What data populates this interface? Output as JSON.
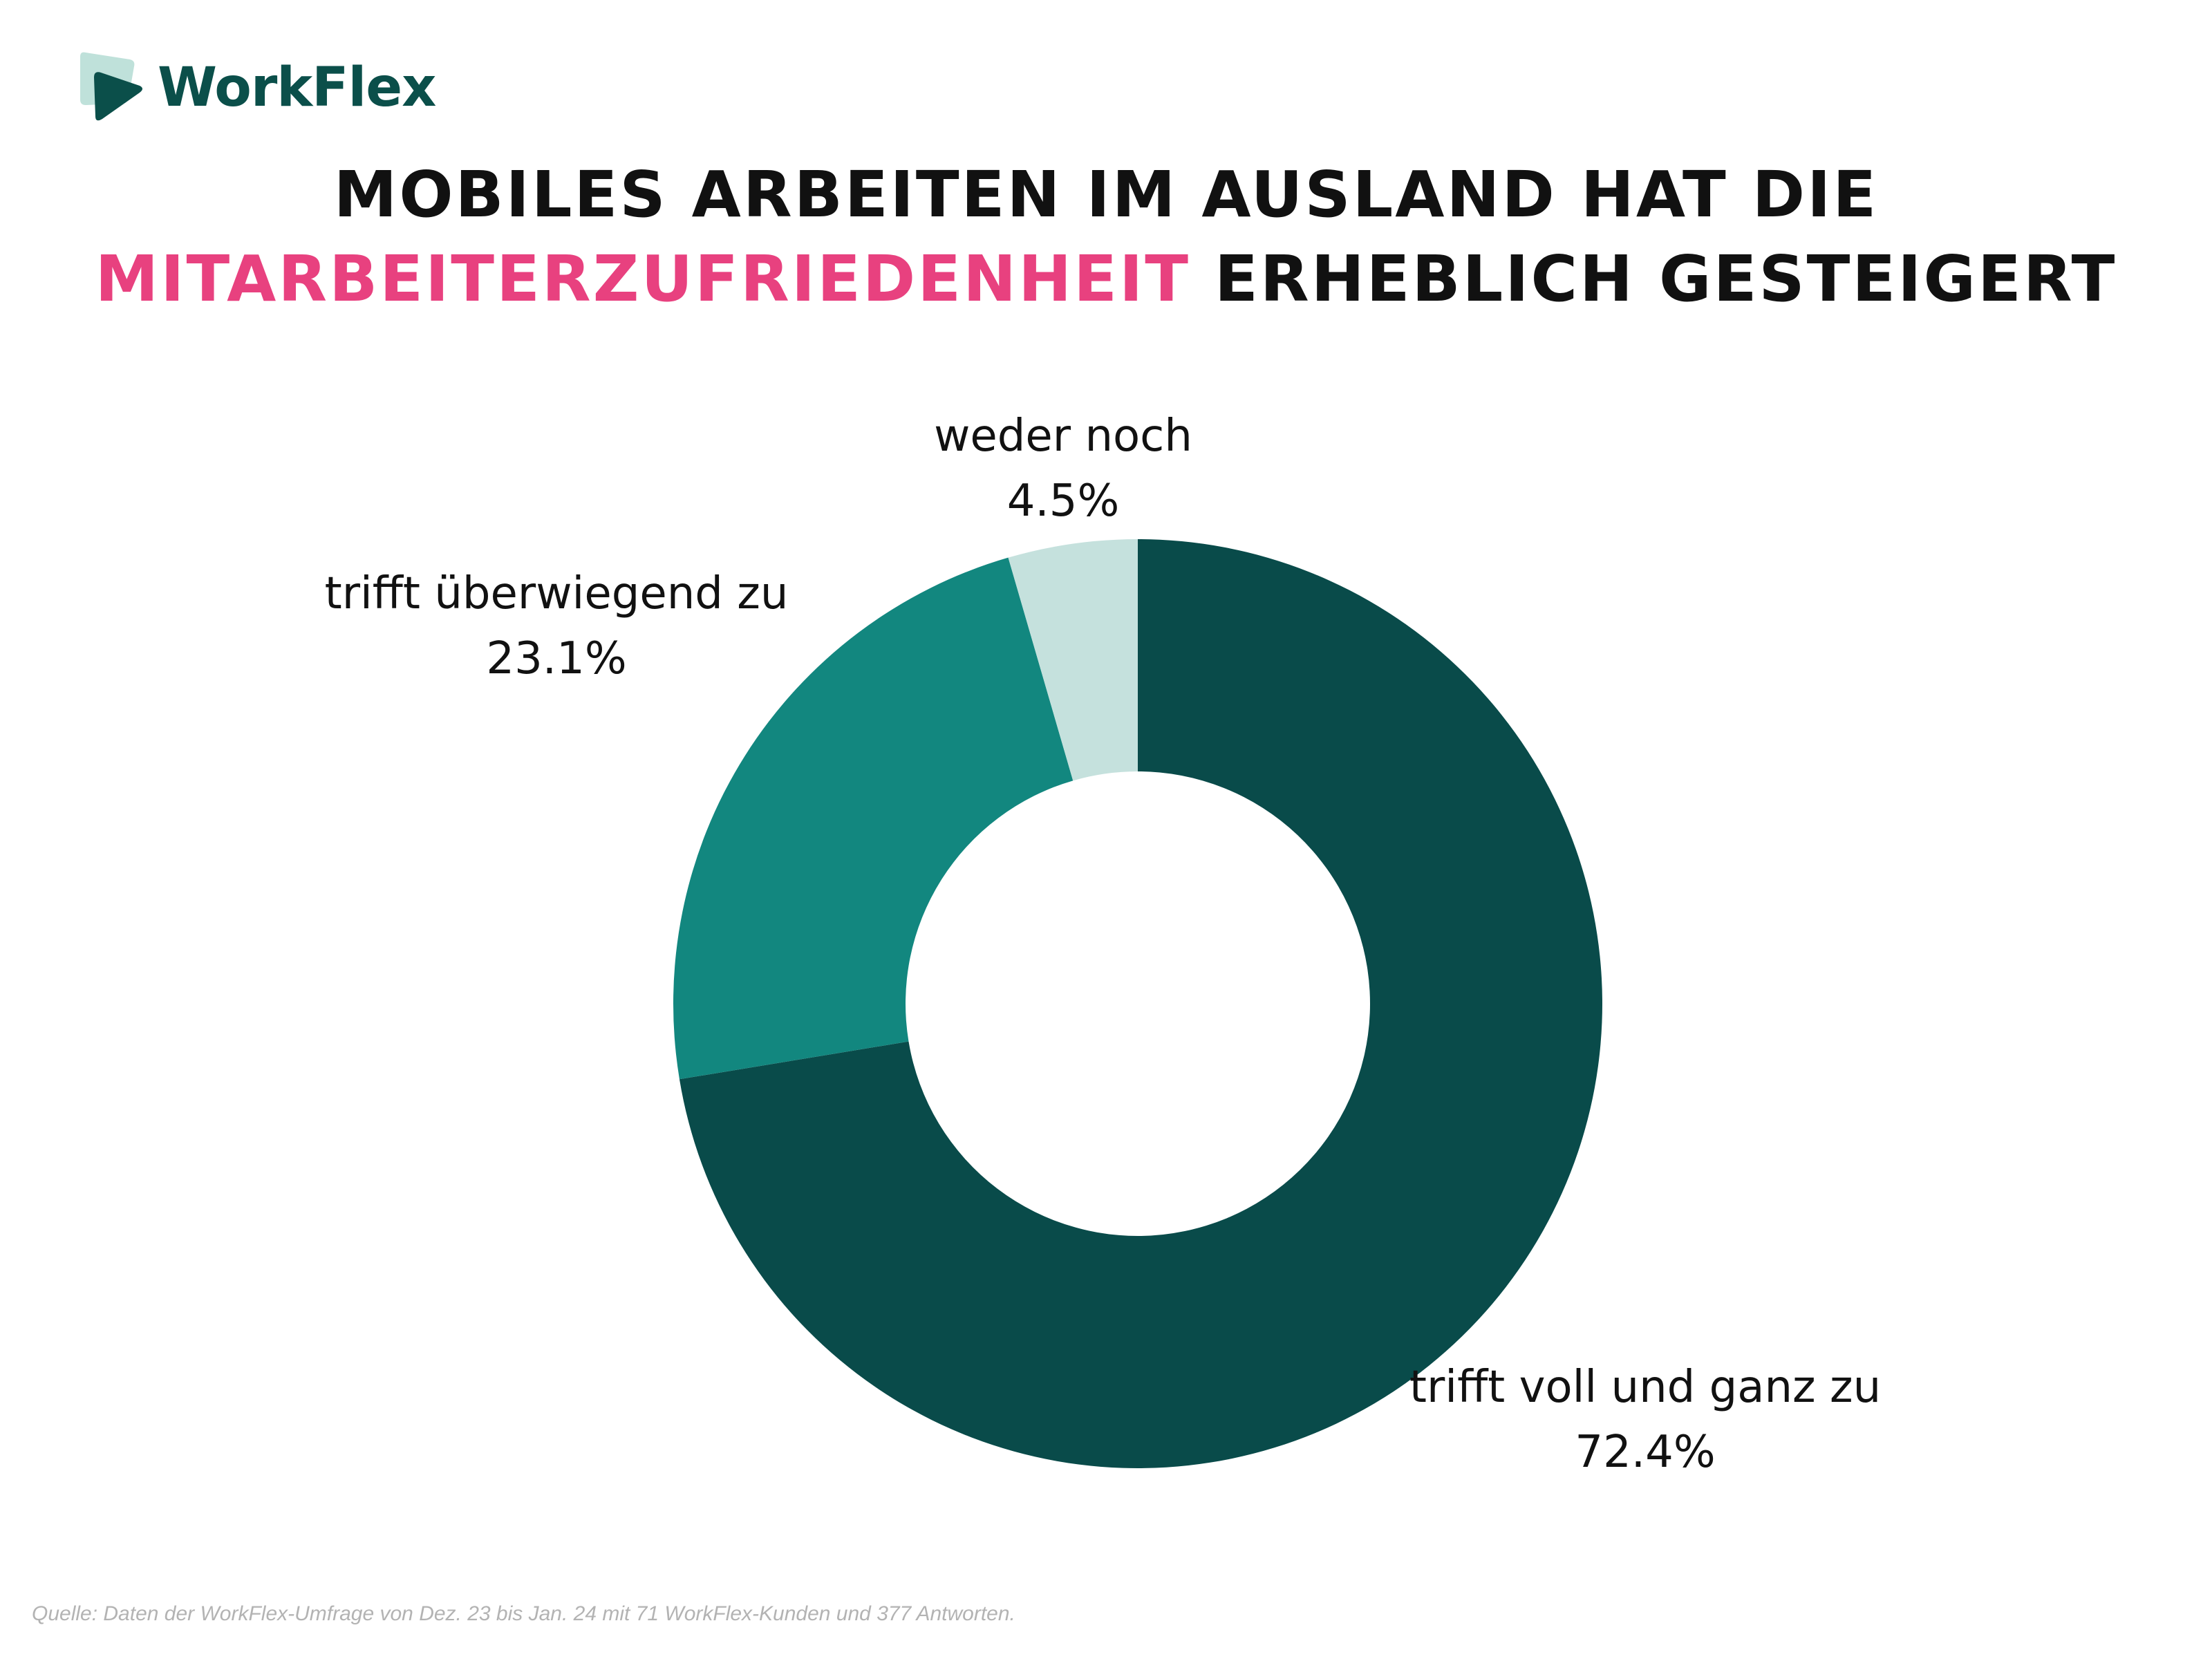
{
  "brand": {
    "name": "WorkFlex",
    "colors": {
      "logo_dark": "#0b4f4a",
      "logo_light": "#bfe1da"
    }
  },
  "title": {
    "line1": "MOBILES ARBEITEN IM AUSLAND HAT DIE",
    "line2_highlight": "MITARBEITERZUFRIEDENHEIT",
    "line2_rest": "ERHEBLICH GESTEIGERT",
    "highlight_color": "#e8417f"
  },
  "chart_data": {
    "type": "pie",
    "variant": "donut",
    "start_angle_deg": 0,
    "direction": "clockwise",
    "slices": [
      {
        "label": "trifft voll und ganz zu",
        "value": 72.4,
        "value_label": "72.4%",
        "color": "#094b4a"
      },
      {
        "label": "trifft überwiegend zu",
        "value": 23.1,
        "value_label": "23.1%",
        "color": "#12877f"
      },
      {
        "label": "weder noch",
        "value": 4.5,
        "value_label": "4.5%",
        "color": "#c5e1dd"
      }
    ]
  },
  "source": "Quelle: Daten der WorkFlex-Umfrage von Dez. 23 bis Jan. 24 mit 71 WorkFlex-Kunden und 377 Antworten."
}
